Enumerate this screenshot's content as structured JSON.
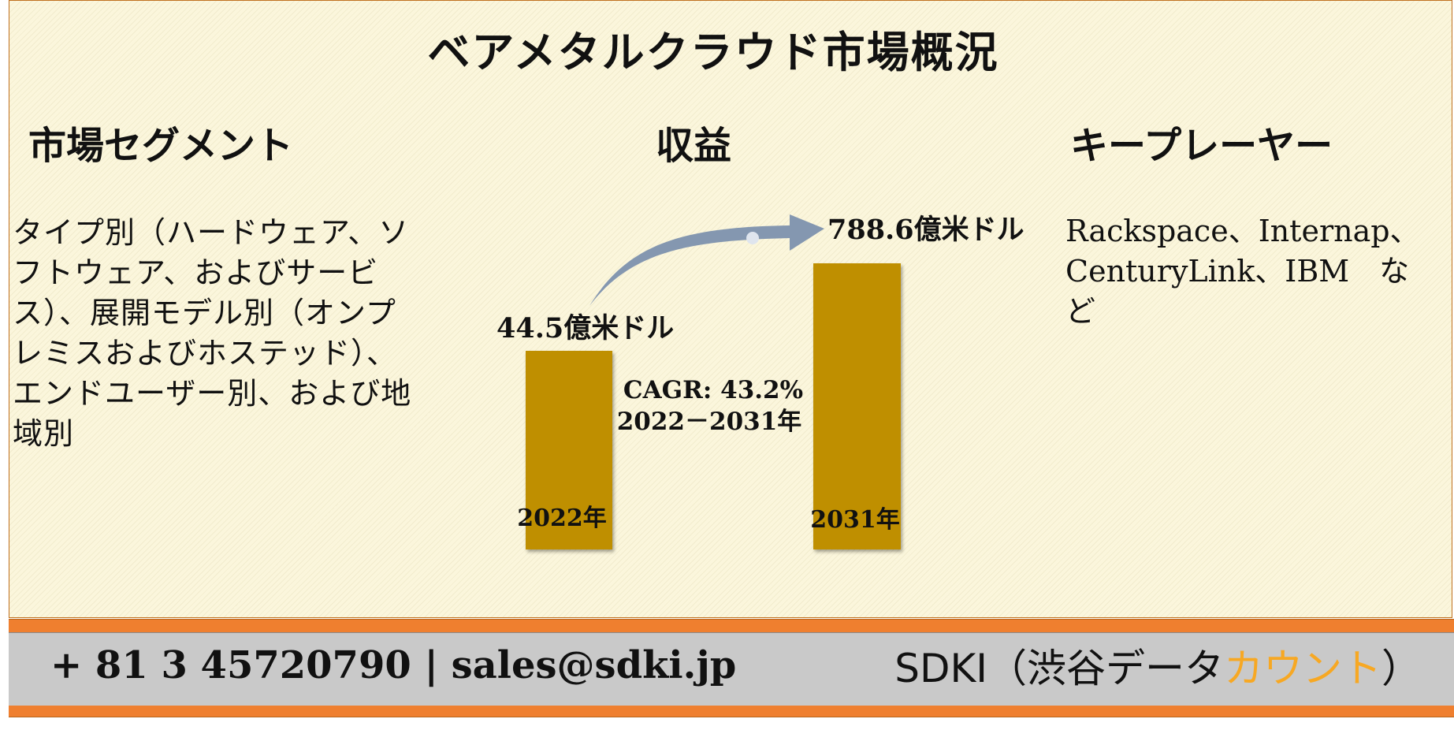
{
  "title": "ベアメタルクラウド市場概況",
  "sections": {
    "segment_heading": "市場セグメント",
    "revenue_heading": "収益",
    "players_heading": "キープレーヤー"
  },
  "segments_text": "タイプ別（ハードウェア、ソフトウェア、およびサービス）、展開モデル別（オンプレミスおよびホステッド）、エンドユーザー別、および地域別",
  "players_text": "Rackspace、Internap、CenturyLink、IBM　など",
  "chart_data": {
    "type": "bar",
    "categories": [
      "2022年",
      "2031年"
    ],
    "values": [
      44.5,
      788.6
    ],
    "value_labels": [
      "44.5億米ドル",
      "788.6億米ドル"
    ],
    "annotation_line1": "CAGR: 43.2%",
    "annotation_line2": "2022－2031年",
    "bar_color": "#bf8f00",
    "arrow_color": "#8497b0"
  },
  "footer": {
    "contact": "+ 81 3 45720790 | sales@sdki.jp",
    "brand_prefix": "SDKI（渋谷データ",
    "brand_accent": "カウント",
    "brand_suffix": "）",
    "accent_color": "#f7a823",
    "band_color": "#ef7f2f"
  }
}
